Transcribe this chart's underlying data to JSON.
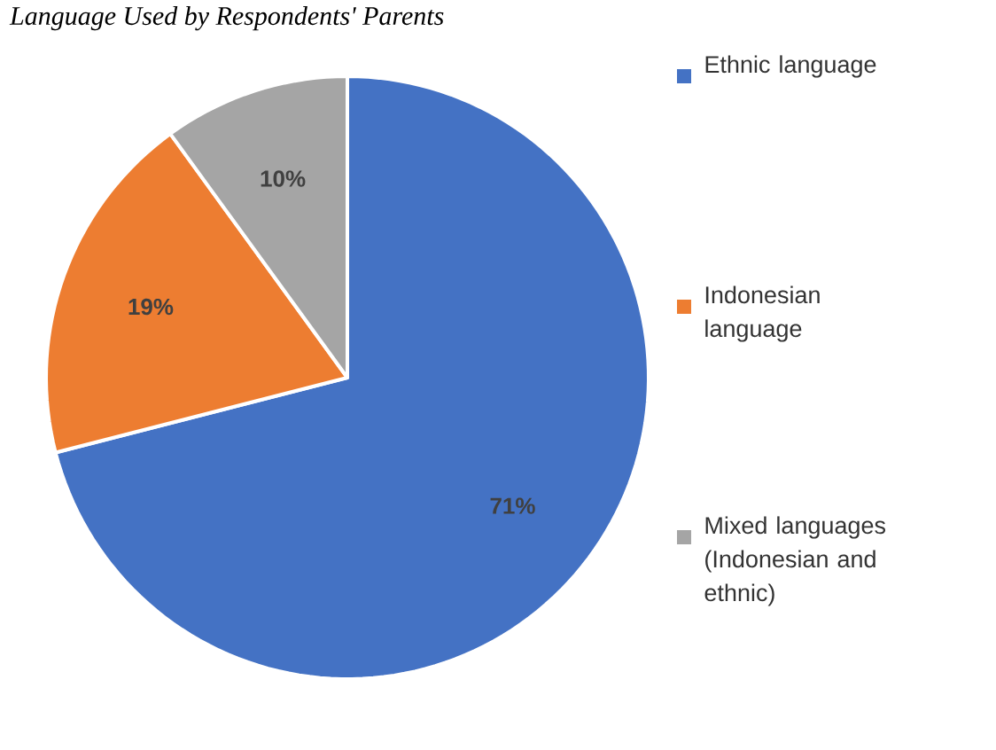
{
  "chart_data": {
    "type": "pie",
    "title": "*Language Used by Respondents' Parents*",
    "categories": [
      "Ethnic language",
      "Indonesian language",
      "Mixed languages (Indonesian and ethnic)"
    ],
    "values": [
      71,
      19,
      10
    ],
    "colors": [
      "#4472c4",
      "#ed7d31",
      "#a5a5a5"
    ],
    "value_labels": [
      "71%",
      "19%",
      "10%"
    ],
    "legend": "right"
  }
}
